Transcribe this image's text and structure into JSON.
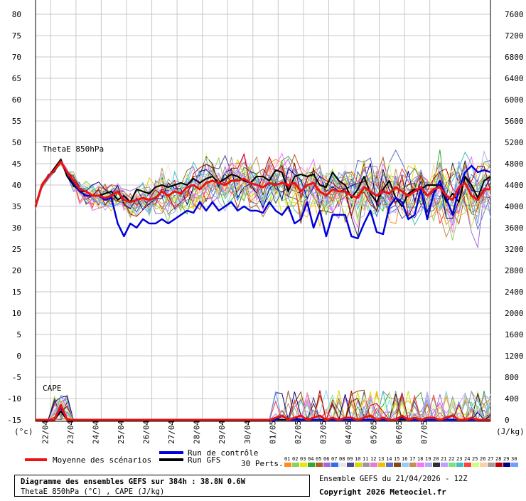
{
  "chart_data": {
    "type": "line",
    "panels": [
      {
        "label": "ThetaE 850hPa",
        "unit": "(°c)"
      },
      {
        "label": "CAPE",
        "unit": "(J/kg)"
      }
    ],
    "y_left": {
      "ticks": [
        80,
        75,
        70,
        65,
        60,
        55,
        50,
        45,
        40,
        35,
        30,
        25,
        20,
        15,
        10,
        5,
        0,
        -5,
        -10,
        -15
      ],
      "range": [
        -15,
        80
      ],
      "unit_label": "(°c)"
    },
    "y_right": {
      "ticks": [
        7600,
        7200,
        6800,
        6400,
        6000,
        5600,
        5200,
        4800,
        4400,
        4000,
        3600,
        3200,
        2800,
        2400,
        2000,
        1600,
        1200,
        800,
        400,
        0
      ],
      "range": [
        -400,
        7600
      ],
      "unit_label": "(J/kg)"
    },
    "x_labels": [
      "22/04",
      "23/04",
      "24/04",
      "25/04",
      "26/04",
      "27/04",
      "28/04",
      "29/04",
      "30/04",
      "01/05",
      "02/05",
      "03/05",
      "04/05",
      "05/05",
      "06/05",
      "07/05"
    ],
    "grid": true,
    "thetae_series": {
      "moyenne": [
        35,
        40,
        42,
        43.5,
        45.5,
        43,
        41,
        39,
        38.5,
        37.5,
        37.5,
        37,
        37.5,
        38.5,
        36.5,
        36,
        36.5,
        37,
        36.5,
        37,
        38.5,
        37.5,
        38.5,
        38,
        39.5,
        40,
        39,
        40.5,
        41,
        40.5,
        40,
        41,
        41,
        41.5,
        40.5,
        40,
        39.5,
        40.5,
        40,
        40.5,
        40,
        40.5,
        38.5,
        40,
        40.5,
        38.5,
        37.5,
        39,
        38.5,
        38.5,
        37.5,
        37,
        39.5,
        38.5,
        37.5,
        38.5,
        38,
        39.5,
        38.5,
        37.5,
        38.5,
        39.5,
        37.5,
        39,
        39.5,
        37.5,
        36.5,
        39.5,
        40.5,
        37.5,
        36.5,
        39,
        39
      ],
      "controle": [
        35,
        40,
        42,
        43.5,
        45.5,
        43,
        40.5,
        38.5,
        37.5,
        37.5,
        37.5,
        36.5,
        37,
        31,
        28,
        31,
        30,
        32,
        31,
        31,
        32,
        31,
        32,
        33,
        34,
        33.5,
        36,
        34,
        36,
        34,
        35,
        36,
        34,
        35,
        34,
        34,
        33.5,
        36,
        34,
        33,
        35,
        31,
        32,
        36,
        30,
        34,
        28,
        33,
        33,
        33,
        28,
        27.5,
        31,
        34,
        29,
        28.5,
        35,
        37,
        36,
        32,
        33,
        39,
        32,
        38,
        41,
        37,
        33,
        39,
        43,
        44.5,
        43,
        43.5,
        43
      ],
      "gfs": [
        35,
        40,
        42,
        44,
        46,
        42,
        40,
        38.5,
        38.5,
        37.5,
        37.5,
        38,
        38.5,
        36.5,
        37.5,
        36,
        39,
        38.5,
        38,
        39.5,
        40,
        39.5,
        40,
        40.5,
        40,
        41.5,
        40.5,
        41.5,
        42,
        40.5,
        41.5,
        42.5,
        42,
        41,
        40.5,
        42,
        42,
        41,
        43.5,
        43,
        38.5,
        42,
        42.5,
        42,
        42.5,
        40,
        39.5,
        43,
        41,
        40,
        37,
        39,
        42,
        38,
        36,
        39,
        41,
        37,
        35,
        38,
        39,
        39,
        40,
        40,
        40,
        36,
        38,
        36,
        42,
        40,
        37,
        41,
        42
      ]
    },
    "cape_series": {
      "moyenne": [
        -15,
        -15,
        -15,
        -15,
        -11.5,
        -15,
        -15,
        -15,
        -15,
        -15,
        -15,
        -15,
        -15,
        -15,
        -15,
        -15,
        -15,
        -15,
        -15,
        -15,
        -15,
        -15,
        -15,
        -15,
        -15,
        -15,
        -15,
        -15,
        -15,
        -15,
        -15,
        -15,
        -15,
        -15,
        -15,
        -15,
        -15,
        -15,
        -14.5,
        -14,
        -15,
        -14.5,
        -14,
        -15,
        -14.5,
        -14,
        -15,
        -14.5,
        -15,
        -14.5,
        -14.5,
        -15,
        -14.5,
        -14,
        -15,
        -14.5,
        -15,
        -15,
        -14,
        -15,
        -14.5,
        -15,
        -14.5,
        -14.5,
        -15,
        -14.5,
        -14,
        -15,
        -15,
        -14.5,
        -15,
        -15,
        -15
      ],
      "controle": [
        -15,
        -15,
        -15,
        -15,
        -12,
        -15,
        -15,
        -15,
        -15,
        -15,
        -15,
        -15,
        -15,
        -15,
        -15,
        -15,
        -15,
        -15,
        -15,
        -15,
        -15,
        -15,
        -15,
        -15,
        -15,
        -15,
        -15,
        -15,
        -15,
        -15,
        -15,
        -15,
        -15,
        -15,
        -15,
        -15,
        -15,
        -15,
        -15,
        -14,
        -15,
        -15,
        -15,
        -15,
        -15,
        -15,
        -15,
        -15,
        -15,
        -15,
        -15,
        -15,
        -15,
        -15,
        -15,
        -15,
        -15,
        -15,
        -14.5,
        -15,
        -15,
        -15,
        -15,
        -15,
        -15,
        -15,
        -15,
        -15,
        -15,
        -15,
        -15,
        -15,
        -15
      ],
      "gfs": [
        -15,
        -15,
        -15,
        -15,
        -13,
        -15,
        -15,
        -15,
        -15,
        -15,
        -15,
        -15,
        -15,
        -15,
        -15,
        -15,
        -15,
        -15,
        -15,
        -15,
        -15,
        -15,
        -15,
        -15,
        -15,
        -15,
        -15,
        -15,
        -15,
        -15,
        -15,
        -15,
        -15,
        -15,
        -15,
        -15,
        -15,
        -15,
        -15,
        -15,
        -15,
        -14.5,
        -15,
        -15,
        -15,
        -15,
        -15,
        -15,
        -15,
        -15,
        -15,
        -15,
        -15,
        -15,
        -15,
        -15,
        -15,
        -15,
        -15,
        -15,
        -15,
        -15,
        -15,
        -15,
        -15,
        -15,
        -15,
        -15,
        -15,
        -15,
        -15,
        -15,
        -15
      ]
    },
    "perturbations": {
      "count": 30,
      "label": "30 Perts.",
      "cape_peak_max": -6
    }
  },
  "legend": {
    "moyenne": "Moyenne des scénarios",
    "controle": "Run de contrôle",
    "gfs": "Run GFS",
    "perts": "30 Perts.",
    "pert_ids": [
      "01",
      "02",
      "03",
      "04",
      "05",
      "06",
      "07",
      "08",
      "09",
      "10",
      "11",
      "12",
      "13",
      "14",
      "15",
      "16",
      "17",
      "18",
      "19",
      "20",
      "21",
      "22",
      "23",
      "24",
      "25",
      "26",
      "27",
      "28",
      "29",
      "30"
    ],
    "pert_colors": [
      "#ff8c1a",
      "#8fd15a",
      "#e8e800",
      "#2faa2f",
      "#b06020",
      "#a56ad8",
      "#2f6fe8",
      "#e8e8e8",
      "#4a4a9a",
      "#d8d800",
      "#9a9a9a",
      "#e87bd0",
      "#f0c000",
      "#6070c0",
      "#8b4513",
      "#90d0ff",
      "#c09050",
      "#ff70ff",
      "#b0b0f0",
      "#303030",
      "#c0a0ff",
      "#80e080",
      "#40c0c0",
      "#ff4040",
      "#d0ff80",
      "#ffd0a0",
      "#a0a0a0",
      "#c00000",
      "#000080",
      "#70a0ff"
    ],
    "colors": {
      "moyenne": "#ee1111",
      "controle": "#0000dd",
      "gfs": "#000000"
    }
  },
  "info": {
    "title": "Diagramme des ensembles GEFS sur 384h : 38.8N 0.6W",
    "subtitle": "ThetaE 850hPa (°C) , CAPE (J/kg)",
    "ensemble": "Ensemble GEFS du 21/04/2026 - 12Z",
    "copyright": "Copyright 2026 Meteociel.fr"
  }
}
